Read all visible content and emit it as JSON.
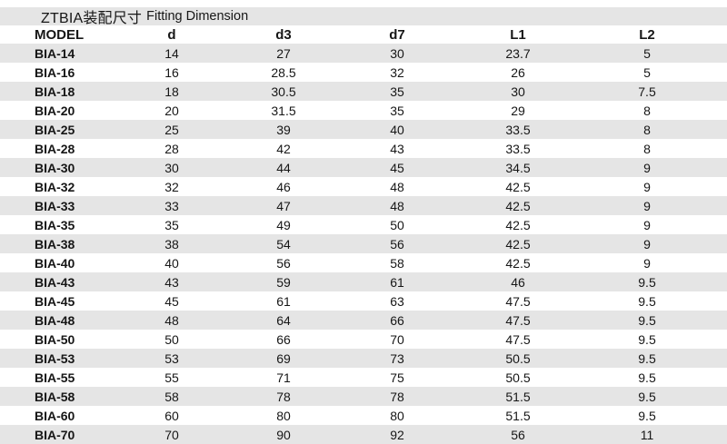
{
  "title": {
    "cn": "ZTBIA装配尺寸",
    "en": "Fitting Dimension"
  },
  "table": {
    "columns": [
      "MODEL",
      "d",
      "d3",
      "d7",
      "L1",
      "L2"
    ],
    "rows": [
      [
        "BIA-14",
        "14",
        "27",
        "30",
        "23.7",
        "5"
      ],
      [
        "BIA-16",
        "16",
        "28.5",
        "32",
        "26",
        "5"
      ],
      [
        "BIA-18",
        "18",
        "30.5",
        "35",
        "30",
        "7.5"
      ],
      [
        "BIA-20",
        "20",
        "31.5",
        "35",
        "29",
        "8"
      ],
      [
        "BIA-25",
        "25",
        "39",
        "40",
        "33.5",
        "8"
      ],
      [
        "BIA-28",
        "28",
        "42",
        "43",
        "33.5",
        "8"
      ],
      [
        "BIA-30",
        "30",
        "44",
        "45",
        "34.5",
        "9"
      ],
      [
        "BIA-32",
        "32",
        "46",
        "48",
        "42.5",
        "9"
      ],
      [
        "BIA-33",
        "33",
        "47",
        "48",
        "42.5",
        "9"
      ],
      [
        "BIA-35",
        "35",
        "49",
        "50",
        "42.5",
        "9"
      ],
      [
        "BIA-38",
        "38",
        "54",
        "56",
        "42.5",
        "9"
      ],
      [
        "BIA-40",
        "40",
        "56",
        "58",
        "42.5",
        "9"
      ],
      [
        "BIA-43",
        "43",
        "59",
        "61",
        "46",
        "9.5"
      ],
      [
        "BIA-45",
        "45",
        "61",
        "63",
        "47.5",
        "9.5"
      ],
      [
        "BIA-48",
        "48",
        "64",
        "66",
        "47.5",
        "9.5"
      ],
      [
        "BIA-50",
        "50",
        "66",
        "70",
        "47.5",
        "9.5"
      ],
      [
        "BIA-53",
        "53",
        "69",
        "73",
        "50.5",
        "9.5"
      ],
      [
        "BIA-55",
        "55",
        "71",
        "75",
        "50.5",
        "9.5"
      ],
      [
        "BIA-58",
        "58",
        "78",
        "78",
        "51.5",
        "9.5"
      ],
      [
        "BIA-60",
        "60",
        "80",
        "80",
        "51.5",
        "9.5"
      ],
      [
        "BIA-70",
        "70",
        "90",
        "92",
        "56",
        "11"
      ]
    ]
  },
  "colors": {
    "stripe": "#e5e5e5",
    "background": "#ffffff",
    "text": "#161616"
  }
}
